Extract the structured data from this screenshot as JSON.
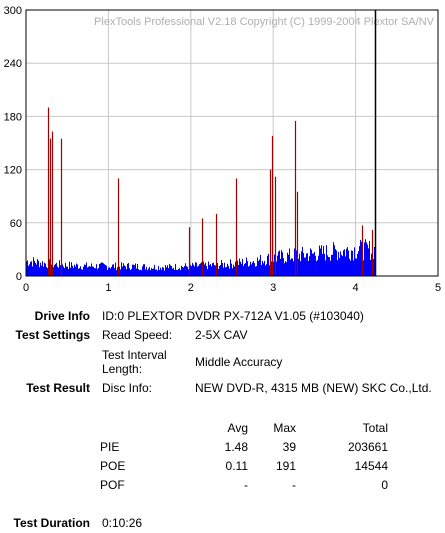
{
  "chart_data": {
    "type": "bar",
    "title": "PlexTools Professional V2.18 Copyright (C) 1999-2004 Plextor SA/NV",
    "xlim": [
      0,
      5
    ],
    "ylim": [
      0,
      300
    ],
    "x_ticks": [
      "0",
      "1",
      "2",
      "3",
      "4",
      "5"
    ],
    "y_ticks": [
      "0",
      "60",
      "120",
      "180",
      "240",
      "300"
    ],
    "grid": true,
    "end_marker_x": 4.23,
    "series": [
      {
        "color": "#0000ff",
        "x": [
          0.05,
          0.25,
          0.5,
          0.75,
          1.0,
          1.25,
          1.5,
          1.75,
          2.0,
          2.25,
          2.5,
          2.75,
          3.0,
          3.25,
          3.5,
          3.75,
          4.0,
          4.23
        ],
        "values": [
          18,
          15,
          13,
          12,
          12,
          12,
          11,
          11,
          12,
          13,
          15,
          18,
          22,
          25,
          27,
          30,
          32,
          32
        ]
      },
      {
        "color": "#a00000",
        "x": [
          0.27,
          0.29,
          0.32,
          0.42,
          1.12,
          1.98,
          2.13,
          2.3,
          2.55,
          2.96,
          2.99,
          3.02,
          3.27,
          3.29,
          4.08,
          4.2
        ],
        "values": [
          190,
          155,
          163,
          155,
          110,
          55,
          65,
          70,
          110,
          120,
          158,
          112,
          175,
          95,
          57,
          52
        ]
      }
    ]
  },
  "drive_info": {
    "label": "Drive Info",
    "value": "ID:0 PLEXTOR DVDR PX-712A V1.05 (#103040)"
  },
  "test_settings": {
    "label": "Test Settings",
    "read_speed_label": "Read Speed:",
    "read_speed_value": "2-5X CAV",
    "interval_label_1": "Test Interval",
    "interval_label_2": "Length:",
    "interval_value": "Middle Accuracy"
  },
  "test_result": {
    "label": "Test Result",
    "disc_label": "Disc Info:",
    "disc_value": "NEW DVD-R, 4315 MB (NEW) SKC Co.,Ltd.",
    "headers": [
      "",
      "Avg",
      "Max",
      "Total"
    ],
    "rows": [
      [
        "PIE",
        "1.48",
        "39",
        "203661"
      ],
      [
        "POE",
        "0.11",
        "191",
        "14544"
      ],
      [
        "POF",
        "-",
        "-",
        "0"
      ]
    ]
  },
  "test_duration": {
    "label": "Test Duration",
    "value": "0:10:26"
  }
}
